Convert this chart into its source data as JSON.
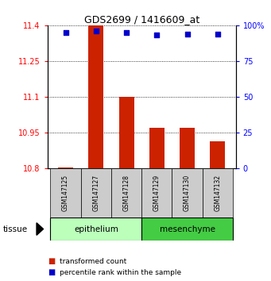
{
  "title": "GDS2699 / 1416609_at",
  "samples": [
    "GSM147125",
    "GSM147127",
    "GSM147128",
    "GSM147129",
    "GSM147130",
    "GSM147132"
  ],
  "transformed_counts": [
    10.803,
    11.4,
    11.1,
    10.97,
    10.97,
    10.915
  ],
  "percentile_ranks": [
    95,
    96,
    95,
    93,
    94,
    94
  ],
  "ylim_left": [
    10.8,
    11.4
  ],
  "ylim_right": [
    0,
    100
  ],
  "yticks_left": [
    10.8,
    10.95,
    11.1,
    11.25,
    11.4
  ],
  "ytick_labels_left": [
    "10.8",
    "10.95",
    "11.1",
    "11.25",
    "11.4"
  ],
  "yticks_right": [
    0,
    25,
    50,
    75,
    100
  ],
  "ytick_labels_right": [
    "0",
    "25",
    "50",
    "75",
    "100%"
  ],
  "bar_color": "#cc2200",
  "dot_color": "#0000cc",
  "bar_bottom": 10.8,
  "epithelium_color_light": "#bbffbb",
  "mesenchyme_color": "#44cc44",
  "sample_box_color": "#cccccc",
  "legend_red_label": "transformed count",
  "legend_blue_label": "percentile rank within the sample",
  "figsize": [
    3.41,
    3.54
  ],
  "dpi": 100
}
